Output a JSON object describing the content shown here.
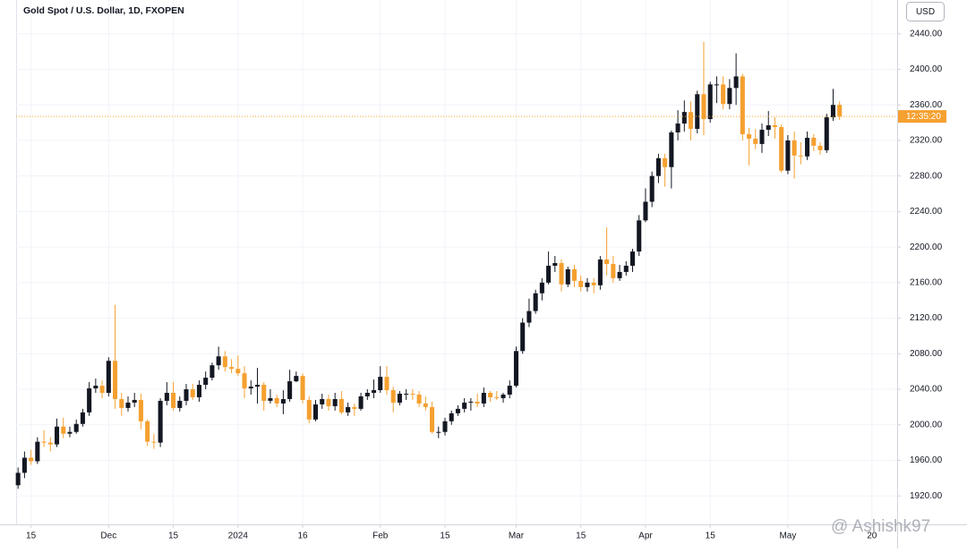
{
  "chart_data": {
    "type": "candlestick",
    "title": "Gold Spot / U.S. Dollar, 1D, FXOPEN",
    "currency_button": "USD",
    "countdown": "12:35:20",
    "watermark": "@ Ashishk97",
    "up_color": "#131722",
    "down_color": "#f5a030",
    "grid": true,
    "xlim": [
      -0.3,
      135.9
    ],
    "ylim": [
      1888,
      2478
    ],
    "yticks": [
      {
        "value": 1920,
        "label": "1920.00"
      },
      {
        "value": 1960,
        "label": "1960.00"
      },
      {
        "value": 2000,
        "label": "2000.00"
      },
      {
        "value": 2040,
        "label": "2040.00"
      },
      {
        "value": 2080,
        "label": "2080.00"
      },
      {
        "value": 2120,
        "label": "2120.00"
      },
      {
        "value": 2160,
        "label": "2160.00"
      },
      {
        "value": 2200,
        "label": "2200.00"
      },
      {
        "value": 2240,
        "label": "2240.00"
      },
      {
        "value": 2280,
        "label": "2280.00"
      },
      {
        "value": 2320,
        "label": "2320.00"
      },
      {
        "value": 2360,
        "label": "2360.00"
      },
      {
        "value": 2400,
        "label": "2400.00"
      },
      {
        "value": 2440,
        "label": "2440.00"
      }
    ],
    "xticks": [
      {
        "value": 2,
        "label": "15"
      },
      {
        "value": 14,
        "label": "Dec"
      },
      {
        "value": 24,
        "label": "15"
      },
      {
        "value": 34,
        "label": "2024"
      },
      {
        "value": 44,
        "label": "16"
      },
      {
        "value": 56,
        "label": "Feb"
      },
      {
        "value": 66,
        "label": "15"
      },
      {
        "value": 77,
        "label": "Mar"
      },
      {
        "value": 87,
        "label": "15"
      },
      {
        "value": 97,
        "label": "Apr"
      },
      {
        "value": 107,
        "label": "15"
      },
      {
        "value": 119,
        "label": "May"
      },
      {
        "value": 132,
        "label": "20"
      }
    ],
    "open": [
      1932,
      1946,
      1963,
      1959,
      1981,
      1980,
      1978,
      1998,
      1990,
      1992,
      2001,
      2014,
      2041,
      2044,
      2036,
      2072,
      2029,
      2019,
      2025,
      2028,
      2004,
      1981,
      1980,
      2027,
      2036,
      2019,
      2027,
      2040,
      2031,
      2045,
      2053,
      2067,
      2077,
      2065,
      2063,
      2058,
      2041,
      2043,
      2045,
      2027,
      2030,
      2024,
      2029,
      2049,
      2055,
      2028,
      2006,
      2023,
      2029,
      2021,
      2029,
      2014,
      2020,
      2018,
      2032,
      2036,
      2039,
      2054,
      2039,
      2025,
      2035,
      2035,
      2034,
      2024,
      2020,
      1992,
      1992,
      2004,
      2013,
      2018,
      2025,
      2026,
      2024,
      2036,
      2031,
      2030,
      2034,
      2044,
      2083,
      2115,
      2128,
      2148,
      2160,
      2179,
      2182,
      2158,
      2175,
      2162,
      2155,
      2160,
      2157,
      2186,
      2181,
      2165,
      2172,
      2179,
      2195,
      2230,
      2251,
      2280,
      2300,
      2290,
      2329,
      2339,
      2352,
      2333,
      2372,
      2344,
      2383,
      2383,
      2361,
      2379,
      2392,
      2327,
      2322,
      2316,
      2332,
      2337,
      2335,
      2286,
      2320,
      2303,
      2302,
      2323,
      2314,
      2309,
      2346,
      2360
    ],
    "high": [
      1952,
      1970,
      1972,
      1986,
      1994,
      1986,
      2007,
      2008,
      1998,
      2006,
      2018,
      2048,
      2052,
      2050,
      2076,
      2135,
      2036,
      2032,
      2036,
      2035,
      2006,
      1990,
      2030,
      2048,
      2048,
      2032,
      2046,
      2046,
      2050,
      2060,
      2070,
      2088,
      2083,
      2074,
      2078,
      2066,
      2050,
      2064,
      2048,
      2040,
      2034,
      2039,
      2062,
      2060,
      2058,
      2032,
      2028,
      2035,
      2034,
      2036,
      2038,
      2025,
      2024,
      2036,
      2040,
      2051,
      2066,
      2066,
      2043,
      2038,
      2040,
      2040,
      2038,
      2032,
      2026,
      1998,
      2008,
      2016,
      2022,
      2030,
      2030,
      2035,
      2042,
      2038,
      2038,
      2036,
      2050,
      2088,
      2120,
      2142,
      2152,
      2165,
      2195,
      2190,
      2186,
      2178,
      2180,
      2168,
      2165,
      2165,
      2190,
      2222,
      2190,
      2180,
      2184,
      2198,
      2236,
      2266,
      2285,
      2305,
      2305,
      2331,
      2354,
      2365,
      2364,
      2376,
      2431,
      2386,
      2392,
      2392,
      2389,
      2418,
      2395,
      2334,
      2333,
      2339,
      2353,
      2346,
      2338,
      2326,
      2330,
      2318,
      2330,
      2327,
      2318,
      2350,
      2378,
      2364
    ],
    "low": [
      1928,
      1940,
      1955,
      1956,
      1975,
      1970,
      1975,
      1985,
      1986,
      1990,
      1998,
      2010,
      2036,
      2030,
      2032,
      2018,
      2010,
      2015,
      2020,
      1995,
      1976,
      1973,
      1975,
      2022,
      2016,
      2015,
      2022,
      2028,
      2026,
      2040,
      2050,
      2062,
      2060,
      2058,
      2055,
      2030,
      2034,
      2024,
      2016,
      2024,
      2020,
      2012,
      2026,
      2048,
      2024,
      2002,
      2004,
      2018,
      2016,
      2016,
      2012,
      2010,
      2010,
      2016,
      2028,
      2030,
      2036,
      2034,
      2014,
      2022,
      2028,
      2028,
      2020,
      2016,
      1990,
      1985,
      1988,
      2000,
      2010,
      2014,
      2016,
      2020,
      2020,
      2026,
      2028,
      2025,
      2030,
      2042,
      2080,
      2110,
      2125,
      2140,
      2158,
      2172,
      2150,
      2155,
      2155,
      2150,
      2150,
      2148,
      2152,
      2168,
      2160,
      2162,
      2168,
      2172,
      2190,
      2228,
      2245,
      2272,
      2268,
      2266,
      2320,
      2330,
      2320,
      2328,
      2326,
      2340,
      2362,
      2355,
      2355,
      2360,
      2320,
      2292,
      2310,
      2306,
      2325,
      2322,
      2284,
      2282,
      2277,
      2293,
      2298,
      2308,
      2304,
      2306,
      2342,
      2343
    ],
    "close": [
      1946,
      1963,
      1959,
      1981,
      1980,
      1978,
      1998,
      1990,
      1992,
      2001,
      2014,
      2041,
      2044,
      2036,
      2072,
      2029,
      2019,
      2025,
      2028,
      2004,
      1981,
      1980,
      2027,
      2036,
      2019,
      2027,
      2040,
      2031,
      2045,
      2053,
      2067,
      2077,
      2065,
      2063,
      2058,
      2041,
      2043,
      2045,
      2027,
      2030,
      2024,
      2029,
      2049,
      2055,
      2028,
      2006,
      2023,
      2029,
      2021,
      2029,
      2014,
      2020,
      2018,
      2032,
      2036,
      2039,
      2054,
      2039,
      2025,
      2035,
      2035,
      2034,
      2024,
      2020,
      1992,
      1992,
      2004,
      2013,
      2018,
      2025,
      2026,
      2024,
      2036,
      2031,
      2030,
      2034,
      2044,
      2083,
      2115,
      2128,
      2148,
      2160,
      2179,
      2182,
      2158,
      2175,
      2162,
      2155,
      2160,
      2157,
      2186,
      2181,
      2165,
      2172,
      2179,
      2195,
      2230,
      2251,
      2280,
      2300,
      2290,
      2329,
      2339,
      2352,
      2333,
      2372,
      2344,
      2383,
      2383,
      2361,
      2379,
      2392,
      2327,
      2322,
      2316,
      2332,
      2337,
      2335,
      2286,
      2320,
      2303,
      2302,
      2323,
      2314,
      2309,
      2346,
      2360,
      2347
    ]
  }
}
